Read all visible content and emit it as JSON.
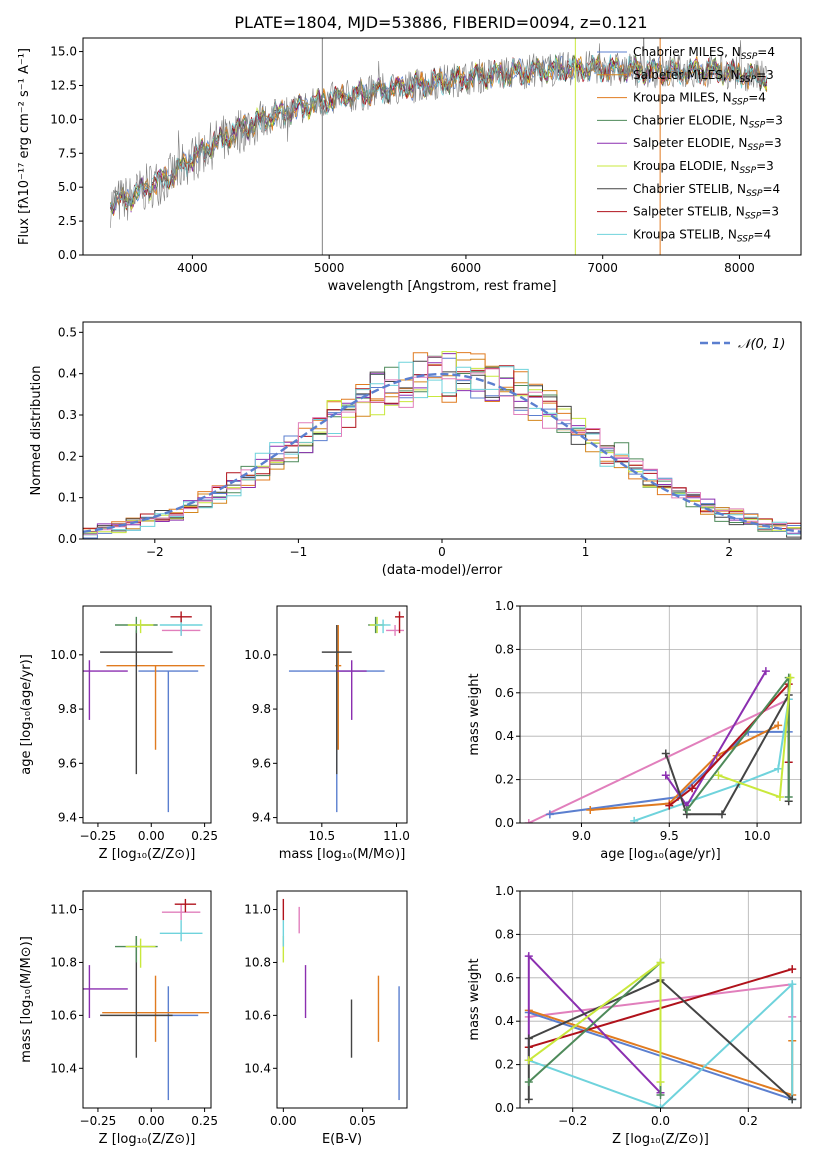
{
  "figure": {
    "title": "PLATE=1804, MJD=53886, FIBERID=0094, z=0.121"
  },
  "colors": {
    "chabrier_miles": "#5b7fcf",
    "salpeter_miles": "#d4861d",
    "kroupa_miles": "#e07b20",
    "chabrier_elodie": "#4e8a5a",
    "salpeter_elodie": "#8b2fb0",
    "kroupa_elodie": "#c9e83c",
    "chabrier_stelib": "#444444",
    "salpeter_stelib": "#b0121b",
    "kroupa_stelib": "#6fd3dc",
    "pink": "#e17fbc",
    "data": "#808080"
  },
  "chart_data": [
    {
      "id": "spectrum",
      "type": "line",
      "xlabel": "wavelength [Angstrom, rest frame]",
      "ylabel": "Flux [fλ10⁻¹⁷ erg cm⁻² s⁻¹ A⁻¹]",
      "xlim": [
        3200,
        8450
      ],
      "ylim": [
        0,
        16
      ],
      "xticks": [
        4000,
        5000,
        6000,
        7000,
        8000
      ],
      "yticks": [
        0.0,
        2.5,
        5.0,
        7.5,
        10.0,
        12.5,
        15.0
      ],
      "grid": false,
      "legend_position": "top-right",
      "legend": [
        {
          "label": "Chabrier MILES, N",
          "sub": "SSP",
          "post": "=4",
          "color": "#5b7fcf"
        },
        {
          "label": "Salpeter MILES, N",
          "sub": "SSP",
          "post": "=3",
          "color": "#d4861d"
        },
        {
          "label": "Kroupa MILES, N",
          "sub": "SSP",
          "post": "=4",
          "color": "#e07b20"
        },
        {
          "label": "Chabrier ELODIE, N",
          "sub": "SSP",
          "post": "=3",
          "color": "#4e8a5a"
        },
        {
          "label": "Salpeter ELODIE, N",
          "sub": "SSP",
          "post": "=3",
          "color": "#8b2fb0"
        },
        {
          "label": "Kroupa ELODIE, N",
          "sub": "SSP",
          "post": "=3",
          "color": "#c9e83c"
        },
        {
          "label": "Chabrier STELIB, N",
          "sub": "SSP",
          "post": "=4",
          "color": "#444444"
        },
        {
          "label": "Salpeter STELIB, N",
          "sub": "SSP",
          "post": "=3",
          "color": "#b0121b"
        },
        {
          "label": "Kroupa STELIB, N",
          "sub": "SSP",
          "post": "=4",
          "color": "#6fd3dc"
        }
      ],
      "continuum": [
        [
          3400,
          3.8
        ],
        [
          3550,
          4.2
        ],
        [
          3700,
          5.2
        ],
        [
          3850,
          5.8
        ],
        [
          3950,
          6.8
        ],
        [
          4100,
          7.8
        ],
        [
          4300,
          9.0
        ],
        [
          4500,
          9.9
        ],
        [
          4700,
          10.6
        ],
        [
          4900,
          11.2
        ],
        [
          5100,
          11.6
        ],
        [
          5300,
          12.0
        ],
        [
          5500,
          12.3
        ],
        [
          5700,
          12.6
        ],
        [
          5900,
          12.9
        ],
        [
          6100,
          13.2
        ],
        [
          6300,
          13.4
        ],
        [
          6500,
          13.6
        ],
        [
          6700,
          13.7
        ],
        [
          6900,
          13.8
        ],
        [
          7100,
          13.7
        ],
        [
          7300,
          13.6
        ],
        [
          7500,
          13.5
        ],
        [
          7700,
          13.6
        ],
        [
          7900,
          13.5
        ],
        [
          8100,
          13.2
        ],
        [
          8200,
          13.0
        ]
      ],
      "spikes": [
        {
          "x": 4950,
          "color": "#808080"
        },
        {
          "x": 6800,
          "color": "#c9e83c"
        },
        {
          "x": 7420,
          "color": "#e07b20"
        }
      ]
    },
    {
      "id": "residuals",
      "type": "step",
      "xlabel": "(data-model)/error",
      "ylabel": "Normed distribution",
      "xlim": [
        -2.5,
        2.5
      ],
      "ylim": [
        0,
        0.525
      ],
      "xticks": [
        -2,
        -1,
        0,
        1,
        2
      ],
      "yticks": [
        0.0,
        0.1,
        0.2,
        0.3,
        0.4,
        0.5
      ],
      "grid": true,
      "legend": "𝒩(0, 1)",
      "legend_position": "top-right",
      "bin_width": 0.1
    },
    {
      "id": "age-vs-Z",
      "type": "errorbar",
      "xlabel": "Z [log₁₀(Z/Z⊙)]",
      "ylabel": "age  [log₁₀(age/yr)]",
      "xlim": [
        -0.32,
        0.28
      ],
      "ylim": [
        9.38,
        10.18
      ],
      "xticks": [
        -0.25,
        0.0,
        0.25
      ],
      "yticks": [
        9.4,
        9.6,
        9.8,
        10.0
      ],
      "points": [
        {
          "x": 0.08,
          "y": 9.94,
          "xerr": 0.14,
          "yerr": [
            0.52,
            0.0
          ],
          "color": "#5b7fcf"
        },
        {
          "x": 0.02,
          "y": 9.96,
          "xerr": 0.23,
          "yerr": [
            0.31,
            0.0
          ],
          "color": "#e07b20"
        },
        {
          "x": -0.07,
          "y": 10.01,
          "xerr": 0.17,
          "yerr": [
            0.45,
            0.08
          ],
          "color": "#444444"
        },
        {
          "x": -0.07,
          "y": 10.11,
          "xerr": 0.1,
          "yerr": [
            0.03,
            0.03
          ],
          "color": "#4e8a5a"
        },
        {
          "x": -0.05,
          "y": 10.11,
          "xerr": 0.06,
          "yerr": [
            0.03,
            0.02
          ],
          "color": "#c9e83c"
        },
        {
          "x": -0.29,
          "y": 9.94,
          "xerr": 0.18,
          "yerr": [
            0.18,
            0.04
          ],
          "color": "#8b2fb0"
        },
        {
          "x": 0.14,
          "y": 10.09,
          "xerr": 0.09,
          "yerr": [
            0.02,
            0.02
          ],
          "color": "#e17fbc"
        },
        {
          "x": 0.14,
          "y": 10.11,
          "xerr": 0.1,
          "yerr": [
            0.04,
            0.02
          ],
          "color": "#6fd3dc"
        },
        {
          "x": 0.14,
          "y": 10.14,
          "xerr": 0.05,
          "yerr": [
            0.02,
            0.02
          ],
          "color": "#b0121b"
        }
      ]
    },
    {
      "id": "age-vs-mass",
      "type": "errorbar",
      "xlabel": "mass [log₁₀(M/M⊙)]",
      "ylabel": "",
      "xlim": [
        10.2,
        11.07
      ],
      "ylim": [
        9.38,
        10.18
      ],
      "xticks": [
        10.5,
        11.0
      ],
      "yticks": [
        9.4,
        9.6,
        9.8,
        10.0
      ],
      "points": [
        {
          "x": 10.6,
          "y": 9.94,
          "xerr": 0.32,
          "yerr": [
            0.52,
            0.0
          ],
          "color": "#5b7fcf"
        },
        {
          "x": 10.61,
          "y": 9.96,
          "xerr": 0.02,
          "yerr": [
            0.31,
            0.15
          ],
          "color": "#e07b20"
        },
        {
          "x": 10.6,
          "y": 10.01,
          "xerr": 0.1,
          "yerr": [
            0.45,
            0.1
          ],
          "color": "#444444"
        },
        {
          "x": 10.7,
          "y": 9.94,
          "xerr": 0.1,
          "yerr": [
            0.18,
            0.04
          ],
          "color": "#8b2fb0"
        },
        {
          "x": 10.86,
          "y": 10.11,
          "xerr": 0.05,
          "yerr": [
            0.03,
            0.03
          ],
          "color": "#4e8a5a"
        },
        {
          "x": 10.87,
          "y": 10.11,
          "xerr": 0.05,
          "yerr": [
            0.03,
            0.03
          ],
          "color": "#c9e83c"
        },
        {
          "x": 10.99,
          "y": 10.09,
          "xerr": 0.06,
          "yerr": [
            0.02,
            0.02
          ],
          "color": "#e17fbc"
        },
        {
          "x": 10.91,
          "y": 10.11,
          "xerr": 0.05,
          "yerr": [
            0.03,
            0.02
          ],
          "color": "#6fd3dc"
        },
        {
          "x": 11.02,
          "y": 10.14,
          "xerr": 0.03,
          "yerr": [
            0.06,
            0.02
          ],
          "color": "#b0121b"
        }
      ]
    },
    {
      "id": "weight-vs-age",
      "type": "line",
      "xlabel": "age  [log₁₀(age/yr)]",
      "ylabel": "mass weight",
      "xlim": [
        8.65,
        10.25
      ],
      "ylim": [
        0,
        1.0
      ],
      "xticks": [
        9.0,
        9.5,
        10.0
      ],
      "yticks": [
        0.0,
        0.2,
        0.4,
        0.6,
        0.8,
        1.0
      ],
      "grid": true,
      "series": [
        {
          "color": "#e17fbc",
          "x": [
            8.7,
            10.18
          ],
          "y": [
            0.0,
            0.57
          ]
        },
        {
          "color": "#5b7fcf",
          "x": [
            8.82,
            9.55,
            9.95,
            10.18
          ],
          "y": [
            0.04,
            0.12,
            0.42,
            0.42
          ]
        },
        {
          "color": "#e07b20",
          "x": [
            9.05,
            9.5,
            9.77,
            10.12
          ],
          "y": [
            0.06,
            0.09,
            0.31,
            0.45
          ]
        },
        {
          "color": "#6fd3dc",
          "x": [
            9.3,
            9.9,
            10.12,
            10.18
          ],
          "y": [
            0.01,
            0.18,
            0.25,
            0.57
          ]
        },
        {
          "color": "#8b2fb0",
          "x": [
            9.48,
            9.6,
            10.05
          ],
          "y": [
            0.22,
            0.08,
            0.7
          ]
        },
        {
          "color": "#b0121b",
          "x": [
            9.5,
            9.63,
            10.18,
            10.18
          ],
          "y": [
            0.08,
            0.16,
            0.64,
            0.28
          ]
        },
        {
          "color": "#444444",
          "x": [
            9.48,
            9.6,
            9.8,
            10.18,
            10.18
          ],
          "y": [
            0.32,
            0.04,
            0.04,
            0.59,
            0.1
          ]
        },
        {
          "color": "#4e8a5a",
          "x": [
            9.6,
            10.18,
            10.18
          ],
          "y": [
            0.06,
            0.67,
            0.12
          ]
        },
        {
          "color": "#c9e83c",
          "x": [
            9.78,
            10.13,
            10.19
          ],
          "y": [
            0.22,
            0.12,
            0.67
          ]
        }
      ]
    },
    {
      "id": "mass-vs-Z",
      "type": "errorbar",
      "xlabel": "Z [log₁₀(Z/Z⊙)]",
      "ylabel": "mass [log₁₀(M/M⊙)]",
      "xlim": [
        -0.32,
        0.28
      ],
      "ylim": [
        10.25,
        11.07
      ],
      "xticks": [
        -0.25,
        0.0,
        0.25
      ],
      "yticks": [
        10.4,
        10.6,
        10.8,
        11.0
      ],
      "points": [
        {
          "x": 0.08,
          "y": 10.6,
          "xerr": 0.14,
          "yerr": [
            0.32,
            0.11
          ],
          "color": "#5b7fcf"
        },
        {
          "x": 0.02,
          "y": 10.61,
          "xerr": 0.25,
          "yerr": [
            0.11,
            0.14
          ],
          "color": "#e07b20"
        },
        {
          "x": -0.07,
          "y": 10.6,
          "xerr": 0.17,
          "yerr": [
            0.16,
            0.3
          ],
          "color": "#444444"
        },
        {
          "x": -0.07,
          "y": 10.86,
          "xerr": 0.1,
          "yerr": [
            0.06,
            0.04
          ],
          "color": "#4e8a5a"
        },
        {
          "x": -0.05,
          "y": 10.86,
          "xerr": 0.07,
          "yerr": [
            0.08,
            0.03
          ],
          "color": "#c9e83c"
        },
        {
          "x": -0.29,
          "y": 10.7,
          "xerr": 0.18,
          "yerr": [
            0.11,
            0.09
          ],
          "color": "#8b2fb0"
        },
        {
          "x": 0.14,
          "y": 10.99,
          "xerr": 0.09,
          "yerr": [
            0.03,
            0.03
          ],
          "color": "#e17fbc"
        },
        {
          "x": 0.14,
          "y": 10.91,
          "xerr": 0.1,
          "yerr": [
            0.03,
            0.05
          ],
          "color": "#6fd3dc"
        },
        {
          "x": 0.16,
          "y": 11.02,
          "xerr": 0.05,
          "yerr": [
            0.03,
            0.02
          ],
          "color": "#b0121b"
        }
      ]
    },
    {
      "id": "mass-vs-ebv",
      "type": "errorbar",
      "xlabel": "E(B-V)",
      "ylabel": "",
      "xlim": [
        -0.004,
        0.078
      ],
      "ylim": [
        10.25,
        11.07
      ],
      "xticks": [
        0.0,
        0.05
      ],
      "yticks": [
        10.4,
        10.6,
        10.8,
        11.0
      ],
      "points": [
        {
          "x": 0.073,
          "y": 10.6,
          "xerr": 0,
          "yerr": [
            0.32,
            0.11
          ],
          "color": "#5b7fcf"
        },
        {
          "x": 0.06,
          "y": 10.61,
          "xerr": 0,
          "yerr": [
            0.11,
            0.14
          ],
          "color": "#e07b20"
        },
        {
          "x": 0.043,
          "y": 10.6,
          "xerr": 0,
          "yerr": [
            0.16,
            0.06
          ],
          "color": "#444444"
        },
        {
          "x": 0.014,
          "y": 10.7,
          "xerr": 0,
          "yerr": [
            0.11,
            0.09
          ],
          "color": "#8b2fb0"
        },
        {
          "x": 0.01,
          "y": 10.96,
          "xerr": 0,
          "yerr": [
            0.05,
            0.05
          ],
          "color": "#e17fbc"
        },
        {
          "x": 0.0,
          "y": 10.85,
          "xerr": 0,
          "yerr": [
            0.05,
            0.05
          ],
          "color": "#c9e83c"
        },
        {
          "x": 0.0,
          "y": 10.91,
          "xerr": 0,
          "yerr": [
            0.05,
            0.05
          ],
          "color": "#6fd3dc"
        },
        {
          "x": 0.0,
          "y": 11.0,
          "xerr": 0,
          "yerr": [
            0.04,
            0.04
          ],
          "color": "#b0121b"
        }
      ]
    },
    {
      "id": "weight-vs-Z",
      "type": "line",
      "xlabel": "Z [log₁₀(Z/Z⊙)]",
      "ylabel": "mass weight",
      "xlim": [
        -0.32,
        0.32
      ],
      "ylim": [
        0,
        1.0
      ],
      "xticks": [
        -0.2,
        0.0,
        0.2
      ],
      "yticks": [
        0.0,
        0.2,
        0.4,
        0.6,
        0.8,
        1.0
      ],
      "grid": true,
      "series": [
        {
          "color": "#e17fbc",
          "x": [
            -0.3,
            0.3,
            0.3
          ],
          "y": [
            0.42,
            0.57,
            0.42
          ]
        },
        {
          "color": "#5b7fcf",
          "x": [
            -0.3,
            0.3
          ],
          "y": [
            0.44,
            0.04
          ]
        },
        {
          "color": "#e07b20",
          "x": [
            -0.3,
            0.3,
            0.3
          ],
          "y": [
            0.45,
            0.06,
            0.31
          ]
        },
        {
          "color": "#6fd3dc",
          "x": [
            -0.3,
            0.0,
            0.3,
            0.3
          ],
          "y": [
            0.22,
            0.0,
            0.57,
            0.04
          ]
        },
        {
          "color": "#8b2fb0",
          "x": [
            -0.3,
            -0.3,
            0.0
          ],
          "y": [
            0.22,
            0.7,
            0.07
          ]
        },
        {
          "color": "#b0121b",
          "x": [
            -0.3,
            0.3
          ],
          "y": [
            0.28,
            0.64
          ]
        },
        {
          "color": "#444444",
          "x": [
            -0.3,
            -0.3,
            0.0,
            0.3
          ],
          "y": [
            0.04,
            0.32,
            0.59,
            0.04
          ]
        },
        {
          "color": "#4e8a5a",
          "x": [
            -0.3,
            0.0,
            0.0
          ],
          "y": [
            0.12,
            0.67,
            0.06
          ]
        },
        {
          "color": "#c9e83c",
          "x": [
            -0.3,
            0.0,
            0.0
          ],
          "y": [
            0.22,
            0.67,
            0.12
          ]
        }
      ]
    }
  ]
}
